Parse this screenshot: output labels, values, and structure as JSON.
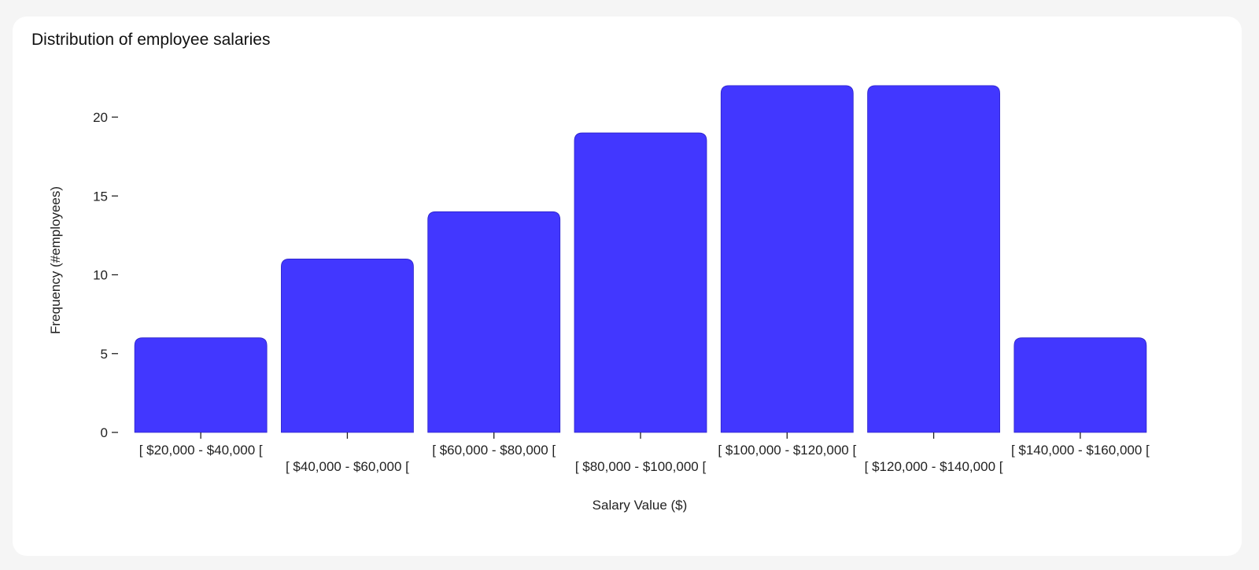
{
  "chart_data": {
    "type": "bar",
    "title": "Distribution of employee salaries",
    "xlabel": "Salary Value ($)",
    "ylabel": "Frequency (#employees)",
    "categories": [
      "[ $20,000 - $40,000 [",
      "[ $40,000 - $60,000 [",
      "[ $60,000 - $80,000 [",
      "[ $80,000 - $100,000 [",
      "[ $100,000 - $120,000 [",
      "[ $120,000 - $140,000 [",
      "[ $140,000 - $160,000 ["
    ],
    "values": [
      6,
      11,
      14,
      19,
      22,
      22,
      6
    ],
    "yticks": [
      0,
      5,
      10,
      15,
      20
    ],
    "ylim": [
      0,
      22
    ],
    "bar_color": "#4237ff",
    "grid": false,
    "legend": "none"
  }
}
